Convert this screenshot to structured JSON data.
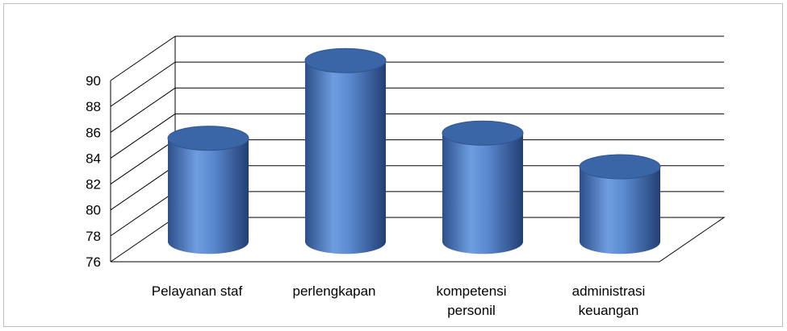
{
  "chart_data": {
    "type": "bar",
    "style": "3d-cylinder",
    "categories": [
      [
        "Pelayanan staf"
      ],
      [
        "perlengkapan"
      ],
      [
        "kompetensi",
        "personil"
      ],
      [
        "administrasi",
        "keuangan"
      ]
    ],
    "values": [
      84,
      90,
      84.4,
      81.8
    ],
    "ylim": [
      76,
      90
    ],
    "yticks": [
      76,
      78,
      80,
      82,
      84,
      86,
      88,
      90
    ],
    "grid": true,
    "legend": "none",
    "colors": {
      "bar_light": "#7aa7e6",
      "bar_mid": "#4f81bd",
      "bar_dark": "#27457a",
      "bar_top": "#3a66a8",
      "gridline": "#000000",
      "axis_text": "#000000"
    }
  }
}
